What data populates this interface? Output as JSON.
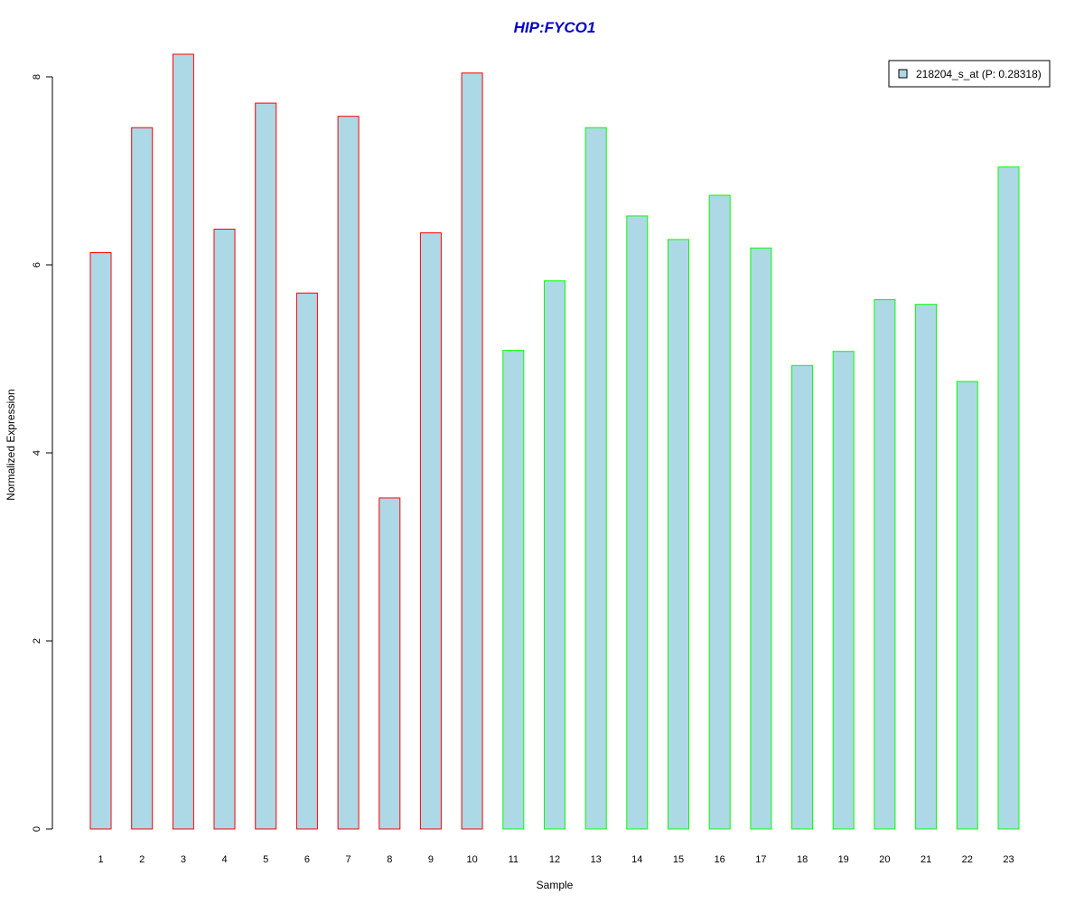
{
  "chart_data": {
    "type": "bar",
    "title": "HIP:FYCO1",
    "xlabel": "Sample",
    "ylabel": "Normalized Expression",
    "ylim": [
      0,
      8.2
    ],
    "yticks": [
      "0",
      "2",
      "4",
      "6",
      "8"
    ],
    "categories": [
      "1",
      "2",
      "3",
      "4",
      "5",
      "6",
      "7",
      "8",
      "9",
      "10",
      "11",
      "12",
      "13",
      "14",
      "15",
      "16",
      "17",
      "18",
      "19",
      "20",
      "21",
      "22",
      "23"
    ],
    "values": [
      6.13,
      7.46,
      8.24,
      6.38,
      7.72,
      5.7,
      7.58,
      3.52,
      6.34,
      8.04,
      5.09,
      5.83,
      7.46,
      6.52,
      6.27,
      6.74,
      6.18,
      4.93,
      5.08,
      5.63,
      5.58,
      4.76,
      7.04
    ],
    "groups": [
      "red",
      "red",
      "red",
      "red",
      "red",
      "red",
      "red",
      "red",
      "red",
      "red",
      "green",
      "green",
      "green",
      "green",
      "green",
      "green",
      "green",
      "green",
      "green",
      "green",
      "green",
      "green",
      "green"
    ],
    "legend": {
      "label": "218204_s_at (P: 0.28318)",
      "position": "top-right"
    },
    "colors": {
      "fill": "#add8e6",
      "red": "#ff0000",
      "green": "#00ff00",
      "title": "#0000cc"
    },
    "grid": false
  }
}
